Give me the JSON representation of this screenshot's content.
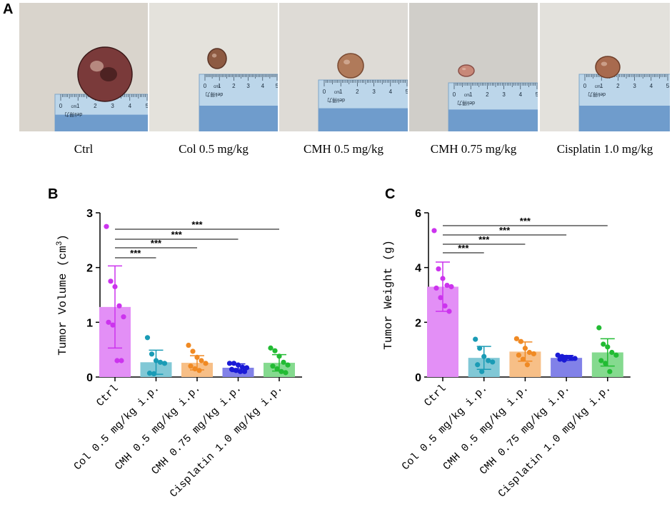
{
  "panel_a": {
    "label": "A",
    "captions": [
      "Ctrl",
      "Col 0.5 mg/kg",
      "CMH 0.5 mg/kg",
      "CMH 0.75 mg/kg",
      "Cisplatin 1.0 mg/kg"
    ],
    "ruler_marks": [
      "0",
      "1",
      "2",
      "3",
      "4",
      "5"
    ],
    "ruler_unit": "cm",
    "ruler_brand": "deli得力"
  },
  "colors": {
    "ctrl": "#cc33ee",
    "col": "#1a9bb5",
    "cmh05": "#f08a24",
    "cmh075": "#1a1ad6",
    "cis": "#22bb33"
  },
  "chart_data": [
    {
      "id": "B",
      "type": "bar",
      "label": "B",
      "ylabel": "Tumor Volume (cm³)",
      "ylabel_main": "Tumor Volume (cm",
      "ylabel_sup": "3",
      "ylabel_end": ")",
      "ylim": [
        0,
        3
      ],
      "yticks": [
        "0",
        "1",
        "2",
        "3"
      ],
      "categories": [
        "Ctrl",
        "Col 0.5 mg/kg i.p.",
        "CMH 0.5 mg/kg i.p.",
        "CMH 0.75 mg/kg i.p.",
        "Cisplatin 1.0 mg/kg i.p."
      ],
      "values": [
        1.28,
        0.27,
        0.26,
        0.17,
        0.26
      ],
      "errors": [
        0.75,
        0.22,
        0.13,
        0.07,
        0.15
      ],
      "points": [
        [
          2.75,
          1.75,
          1.65,
          1.3,
          1.1,
          1.0,
          0.95,
          0.3,
          0.3
        ],
        [
          0.72,
          0.42,
          0.3,
          0.27,
          0.25,
          0.07,
          0.06
        ],
        [
          0.58,
          0.47,
          0.36,
          0.3,
          0.25,
          0.2,
          0.15,
          0.12
        ],
        [
          0.25,
          0.25,
          0.22,
          0.18,
          0.17,
          0.14,
          0.12,
          0.1,
          0.1
        ],
        [
          0.53,
          0.48,
          0.38,
          0.27,
          0.22,
          0.2,
          0.15,
          0.1,
          0.08
        ]
      ],
      "significance": [
        "***",
        "***",
        "***",
        "***"
      ]
    },
    {
      "id": "C",
      "type": "bar",
      "label": "C",
      "ylabel": "Tumor Weight (g)",
      "ylim": [
        0,
        6
      ],
      "yticks": [
        "0",
        "2",
        "4",
        "6"
      ],
      "categories": [
        "Ctrl",
        "Col 0.5 mg/kg i.p.",
        "CMH 0.5 mg/kg i.p.",
        "CMH 0.75 mg/kg i.p.",
        "Cisplatin 1.0 mg/kg i.p."
      ],
      "values": [
        3.3,
        0.7,
        0.93,
        0.7,
        0.9
      ],
      "errors": [
        0.9,
        0.42,
        0.35,
        0.09,
        0.5
      ],
      "points": [
        [
          5.35,
          3.95,
          3.6,
          3.35,
          3.3,
          3.25,
          2.9,
          2.6,
          2.4
        ],
        [
          1.38,
          1.05,
          0.75,
          0.6,
          0.55,
          0.45,
          0.2
        ],
        [
          1.4,
          1.3,
          1.05,
          0.9,
          0.85,
          0.8,
          0.65,
          0.45
        ],
        [
          0.8,
          0.75,
          0.72,
          0.7,
          0.68,
          0.65,
          0.62
        ],
        [
          1.8,
          1.2,
          1.1,
          0.9,
          0.8,
          0.6,
          0.5,
          0.2
        ]
      ],
      "significance": [
        "***",
        "***",
        "***",
        "***"
      ]
    }
  ]
}
